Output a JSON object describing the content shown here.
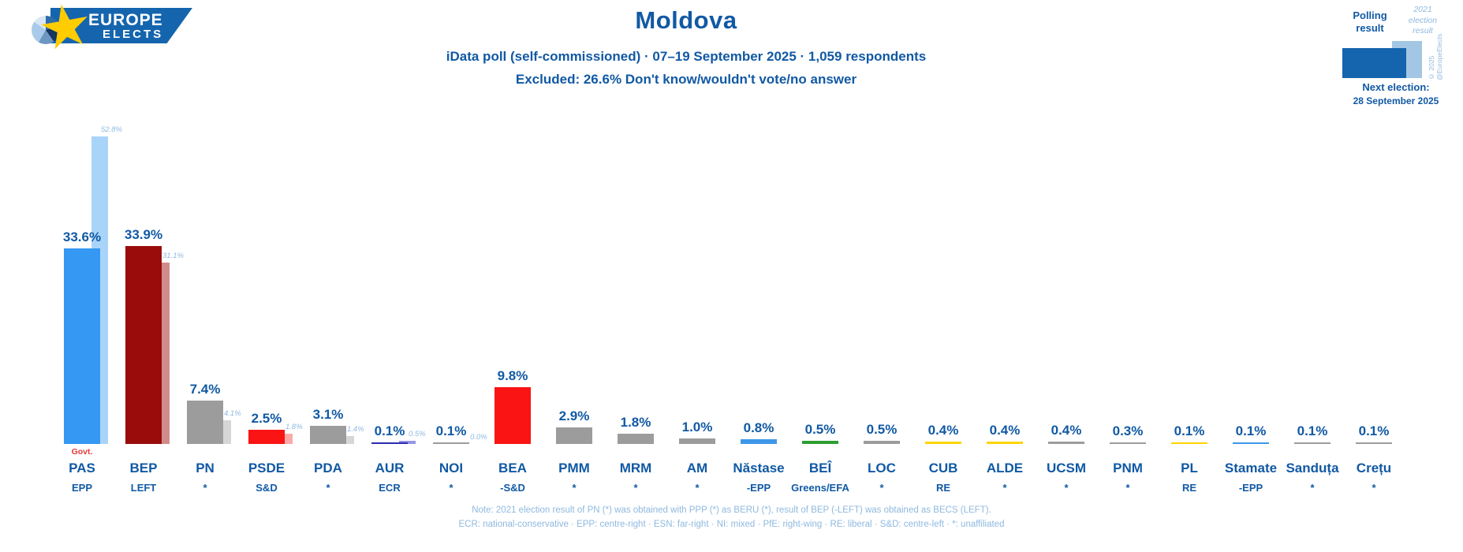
{
  "header": {
    "title": "Moldova",
    "subtitle": "iData poll (self-commissioned) · 07–19 September 2025 · 1,059 respondents",
    "excluded": "Excluded: 26.6% Don't know/wouldn't vote/no answer"
  },
  "logo": {
    "line1": "EUROPE",
    "line2": "ELECTS"
  },
  "legend": {
    "polling_label": "Polling result",
    "election_label": "2021 election result",
    "copyright": "© 2025 @EuropeElects",
    "next_election_label": "Next election:",
    "next_election_date": "28 September 2025"
  },
  "chart_data": {
    "type": "bar",
    "unit": "%",
    "grid": false,
    "value_labels": true,
    "ymax_percent": 60,
    "series": [
      "Polling result",
      "2021 election result"
    ],
    "govt_label": "Govt.",
    "parties": [
      {
        "name": "PAS",
        "group": "EPP",
        "polling": 33.6,
        "election2021": 52.8,
        "color": "#3598F2",
        "color2021": "#A9D4F9",
        "govt": true
      },
      {
        "name": "BEP",
        "group": "LEFT",
        "polling": 33.9,
        "election2021": 31.1,
        "color": "#9A0C0C",
        "color2021": "#D08C8C"
      },
      {
        "name": "PN",
        "group": "*",
        "polling": 7.4,
        "election2021": 4.1,
        "color": "#9C9C9C",
        "color2021": "#D6D6D6"
      },
      {
        "name": "PSDE",
        "group": "S&D",
        "polling": 2.5,
        "election2021": 1.8,
        "color": "#FA1414",
        "color2021": "#FCA9A9"
      },
      {
        "name": "PDA",
        "group": "*",
        "polling": 3.1,
        "election2021": 1.4,
        "color": "#9C9C9C",
        "color2021": "#D6D6D6"
      },
      {
        "name": "AUR",
        "group": "ECR",
        "polling": 0.1,
        "election2021": 0.5,
        "color": "#2B2BB0",
        "color2021": "#9595E6"
      },
      {
        "name": "NOI",
        "group": "*",
        "polling": 0.1,
        "election2021": 0.0,
        "color": "#9C9C9C",
        "color2021": "#D6D6D6"
      },
      {
        "name": "BEA",
        "group": "-S&D",
        "polling": 9.8,
        "color": "#FA1414"
      },
      {
        "name": "PMM",
        "group": "*",
        "polling": 2.9,
        "color": "#9C9C9C"
      },
      {
        "name": "MRM",
        "group": "*",
        "polling": 1.8,
        "color": "#9C9C9C"
      },
      {
        "name": "AM",
        "group": "*",
        "polling": 1.0,
        "color": "#9C9C9C"
      },
      {
        "name": "Năstase",
        "group": "-EPP",
        "polling": 0.8,
        "color": "#3E97E9"
      },
      {
        "name": "BEÎ",
        "group": "Greens/EFA",
        "polling": 0.5,
        "color": "#2E9E30"
      },
      {
        "name": "LOC",
        "group": "*",
        "polling": 0.5,
        "color": "#9C9C9C"
      },
      {
        "name": "CUB",
        "group": "RE",
        "polling": 0.4,
        "color": "#FFD400"
      },
      {
        "name": "ALDE",
        "group": "*",
        "polling": 0.4,
        "color": "#FFD400"
      },
      {
        "name": "UCSM",
        "group": "*",
        "polling": 0.4,
        "color": "#9C9C9C"
      },
      {
        "name": "PNM",
        "group": "*",
        "polling": 0.3,
        "color": "#9C9C9C"
      },
      {
        "name": "PL",
        "group": "RE",
        "polling": 0.1,
        "color": "#FFD400"
      },
      {
        "name": "Stamate",
        "group": "-EPP",
        "polling": 0.1,
        "color": "#3E97E9"
      },
      {
        "name": "Sanduța",
        "group": "*",
        "polling": 0.1,
        "color": "#9C9C9C"
      },
      {
        "name": "Crețu",
        "group": "*",
        "polling": 0.1,
        "color": "#9C9C9C"
      }
    ]
  },
  "notes": {
    "line1": "Note: 2021 election result of PN (*) was obtained with PPP (*) as BERU (*), result of BEP (-LEFT) was obtained as BECS (LEFT).",
    "line2": "ECR: national-conservative · EPP: centre-right · ESN: far-right · NI: mixed · PfE: right-wing · RE: liberal · S&D: centre-left · *: unaffiliated"
  }
}
